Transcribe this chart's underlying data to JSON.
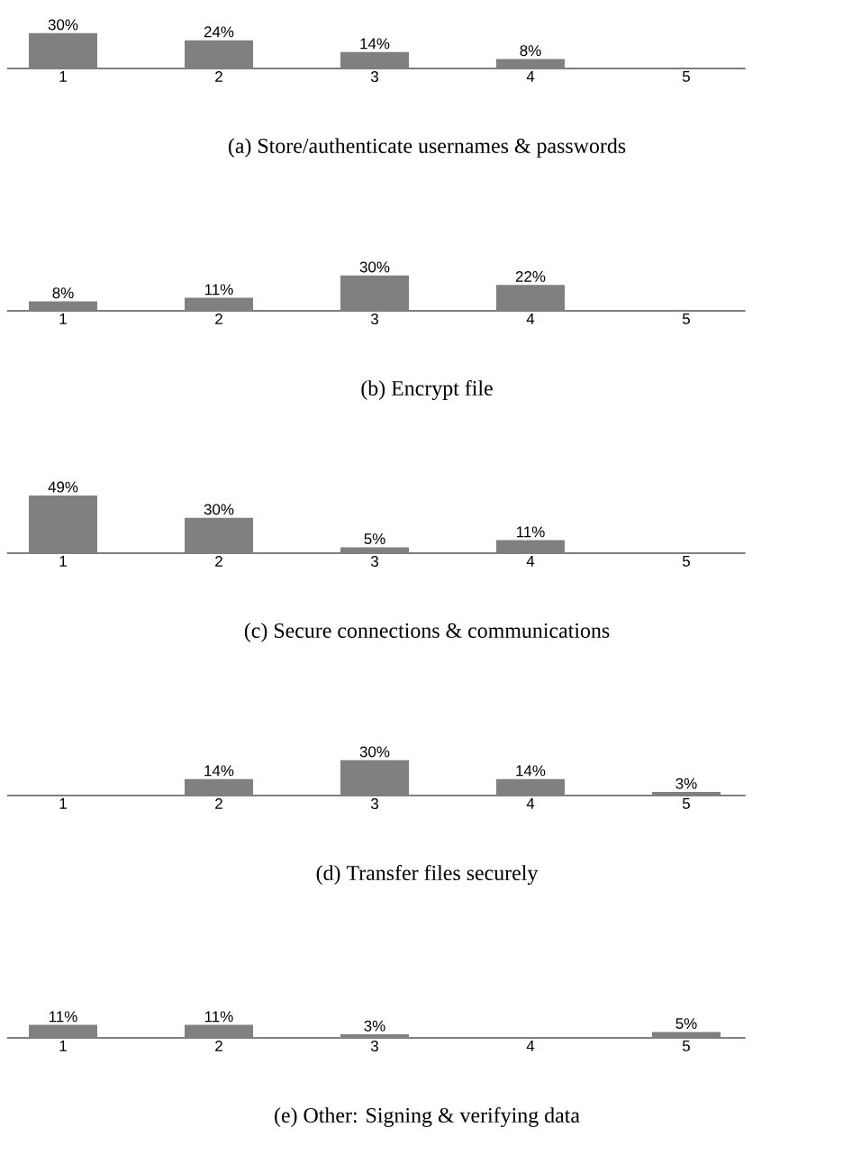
{
  "chart_data": [
    {
      "type": "bar",
      "title": "(a) Store/authenticate usernames & passwords",
      "categories": [
        "1",
        "2",
        "3",
        "4",
        "5"
      ],
      "values": [
        30,
        24,
        14,
        8,
        null
      ],
      "value_labels": [
        "30%",
        "24%",
        "14%",
        "8%",
        null
      ],
      "color": "#808080"
    },
    {
      "type": "bar",
      "title": "(b) Encrypt file",
      "categories": [
        "1",
        "2",
        "3",
        "4",
        "5"
      ],
      "values": [
        8,
        11,
        30,
        22,
        null
      ],
      "value_labels": [
        "8%",
        "11%",
        "30%",
        "22%",
        null
      ],
      "color": "#808080"
    },
    {
      "type": "bar",
      "title": "(c) Secure connections & communications",
      "categories": [
        "1",
        "2",
        "3",
        "4",
        "5"
      ],
      "values": [
        49,
        30,
        5,
        11,
        null
      ],
      "value_labels": [
        "49%",
        "30%",
        "5%",
        "11%",
        null
      ],
      "color": "#808080"
    },
    {
      "type": "bar",
      "title": "(d) Transfer files securely",
      "categories": [
        "1",
        "2",
        "3",
        "4",
        "5"
      ],
      "values": [
        null,
        14,
        30,
        14,
        3
      ],
      "value_labels": [
        null,
        "14%",
        "30%",
        "14%",
        "3%"
      ],
      "color": "#808080"
    },
    {
      "type": "bar",
      "title": "(e) Other: Signing & verifying data",
      "categories": [
        "1",
        "2",
        "3",
        "4",
        "5"
      ],
      "values": [
        11,
        11,
        3,
        null,
        5
      ],
      "value_labels": [
        "11%",
        "11%",
        "3%",
        null,
        "5%"
      ],
      "color": "#808080"
    }
  ]
}
